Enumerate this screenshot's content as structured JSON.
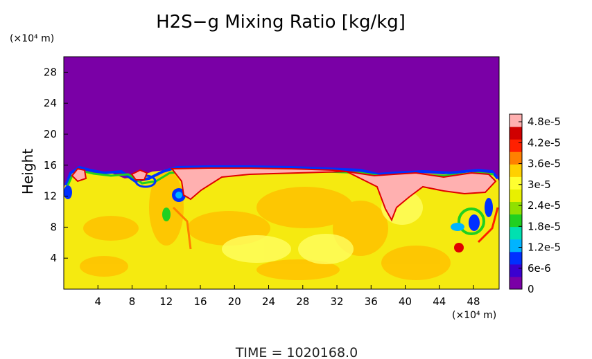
{
  "chart_data": {
    "type": "heatmap",
    "title": "H2S−g Mixing Ratio [kg/kg]",
    "ylabel": "Height",
    "y_unit": "(×10⁴ m)",
    "x_unit": "(×10⁴ m)",
    "x_ticks": [
      "4",
      "8",
      "12",
      "16",
      "20",
      "24",
      "28",
      "32",
      "36",
      "40",
      "44",
      "48"
    ],
    "y_ticks": [
      "4",
      "8",
      "12",
      "16",
      "20",
      "24",
      "28"
    ],
    "xlim": [
      0,
      51
    ],
    "ylim": [
      0,
      30
    ],
    "colorbar": {
      "labels": [
        "4.8e-5",
        "4.2e-5",
        "3.6e-5",
        "3e-5",
        "2.4e-5",
        "1.8e-5",
        "1.2e-5",
        "6e-6",
        "0"
      ],
      "colors": [
        "#7a00a6",
        "#3a00d0",
        "#0030ff",
        "#00b4ff",
        "#00e0b0",
        "#20d020",
        "#90e000",
        "#e8f000",
        "#ffff30",
        "#ffd000",
        "#ff8000",
        "#ff2000",
        "#d00000",
        "#ffb0b0"
      ]
    },
    "time_label": "TIME  =  1020168.0"
  }
}
